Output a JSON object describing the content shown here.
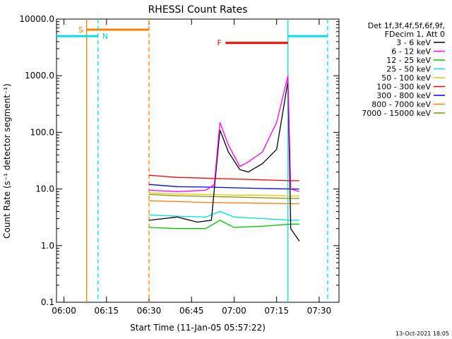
{
  "chart_data": {
    "type": "line",
    "title": "RHESSI Count Rates",
    "xlabel": "Start Time (11-Jan-05 05:57:22)",
    "ylabel": "Count Rate (s⁻¹ detector segment⁻¹)",
    "y_scale": "log",
    "ylim": [
      0.1,
      10000.0
    ],
    "xlim": [
      "05:57:22",
      "07:37:00"
    ],
    "x_ticks": [
      "06:00",
      "06:15",
      "06:30",
      "06:45",
      "07:00",
      "07:15",
      "07:30"
    ],
    "y_ticks": [
      "0.1",
      "1.0",
      "10.0",
      "100.0",
      "1000.0",
      "10000.0"
    ],
    "legend_position": "top-right",
    "legend_header": [
      "Det 1f,3f,4f,5f,6f,9f,",
      "FDecim 1, Att 0"
    ],
    "series": [
      {
        "name": "3 - 6 keV",
        "color": "#000000",
        "x": [
          "06:30",
          "06:40",
          "06:47",
          "06:52",
          "06:55",
          "06:58",
          "07:02",
          "07:05",
          "07:10",
          "07:15",
          "07:19",
          "07:20",
          "07:23"
        ],
        "values": [
          2.8,
          3.2,
          2.6,
          2.8,
          110,
          45,
          22,
          20,
          28,
          50,
          800,
          2,
          1.2
        ]
      },
      {
        "name": "6 - 12 keV",
        "color": "#ff00ff",
        "x": [
          "06:30",
          "06:40",
          "06:50",
          "06:53",
          "06:55",
          "06:58",
          "07:02",
          "07:05",
          "07:10",
          "07:15",
          "07:19",
          "07:20",
          "07:23"
        ],
        "values": [
          9.5,
          9.0,
          9.5,
          12,
          150,
          60,
          25,
          30,
          45,
          150,
          1000,
          10,
          9
        ]
      },
      {
        "name": "12 - 25 keV",
        "color": "#00c800",
        "x": [
          "06:30",
          "06:40",
          "06:50",
          "06:55",
          "07:00",
          "07:10",
          "07:20",
          "07:23"
        ],
        "values": [
          2.1,
          2.0,
          2.0,
          2.8,
          2.1,
          2.2,
          2.4,
          2.4
        ]
      },
      {
        "name": "25 - 50 keV",
        "color": "#00e0e0",
        "x": [
          "06:30",
          "06:40",
          "06:50",
          "06:55",
          "07:00",
          "07:10",
          "07:20",
          "07:23"
        ],
        "values": [
          3.5,
          3.3,
          3.2,
          4.0,
          3.2,
          3.0,
          2.8,
          2.8
        ]
      },
      {
        "name": "50 - 100 keV",
        "color": "#e6c800",
        "x": [
          "06:30",
          "06:40",
          "06:50",
          "07:00",
          "07:10",
          "07:20",
          "07:23"
        ],
        "values": [
          8.5,
          8.2,
          8.0,
          7.8,
          7.8,
          7.5,
          7.5
        ]
      },
      {
        "name": "100 - 300 keV",
        "color": "#ff0000",
        "x": [
          "06:30",
          "06:40",
          "06:50",
          "07:00",
          "07:10",
          "07:20",
          "07:23"
        ],
        "values": [
          17.5,
          16.0,
          15.5,
          15.0,
          14.5,
          14.0,
          14.0
        ]
      },
      {
        "name": "300 - 800 keV",
        "color": "#0000ff",
        "x": [
          "06:30",
          "06:40",
          "06:50",
          "07:00",
          "07:10",
          "07:20",
          "07:23"
        ],
        "values": [
          12.0,
          11.0,
          10.8,
          10.5,
          10.2,
          10.0,
          10.0
        ]
      },
      {
        "name": "800 - 7000 keV",
        "color": "#ff8000",
        "x": [
          "06:30",
          "06:40",
          "06:50",
          "07:00",
          "07:10",
          "07:20",
          "07:23"
        ],
        "values": [
          6.2,
          6.0,
          5.8,
          5.7,
          5.6,
          5.5,
          5.5
        ]
      },
      {
        "name": "7000 - 15000 keV",
        "color": "#8c8c00",
        "x": [
          "06:30",
          "06:40",
          "06:50",
          "07:00",
          "07:10",
          "07:20",
          "07:23"
        ],
        "values": [
          8.0,
          7.6,
          7.4,
          7.2,
          7.0,
          6.8,
          6.8
        ]
      }
    ],
    "overlays": [
      {
        "label": "S",
        "color": "#ff8000",
        "style": "solid",
        "x_start": "06:08",
        "x_end": "06:30",
        "y": 6500,
        "vline_start": "solid",
        "vline_end": "dashed"
      },
      {
        "label": "N",
        "color": "#00e0e0",
        "style": "solid",
        "x_start": "05:57:22",
        "x_end": "06:12",
        "y": 5000,
        "vline_end": "dashed"
      },
      {
        "label": "",
        "color": "#00e0e0",
        "style": "solid",
        "x_start": "07:19",
        "x_end": "07:33",
        "y": 5000,
        "vline_start": "solid",
        "vline_end": "dashed"
      },
      {
        "label": "F",
        "color": "#ff0000",
        "style": "solid",
        "x_start": "06:57",
        "x_end": "07:19",
        "y": 3800
      }
    ],
    "timestamp": "13-Oct-2021 18:05"
  }
}
